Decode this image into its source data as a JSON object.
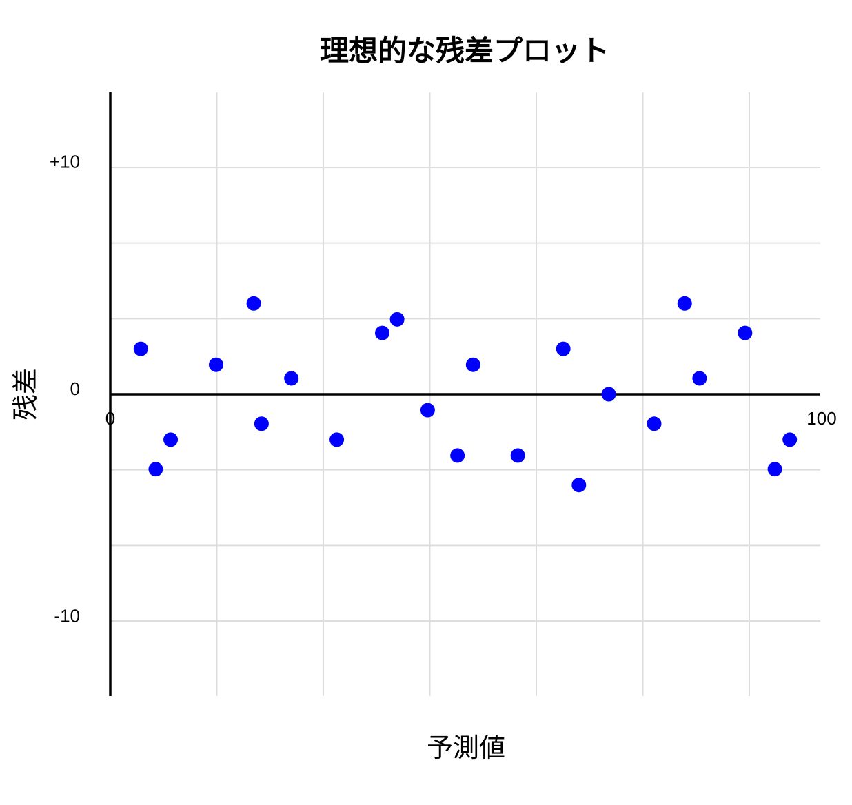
{
  "chart_data": {
    "type": "scatter",
    "title": "理想的な残差プロット",
    "xlabel": "予測値",
    "ylabel": "残差",
    "xlim": [
      0,
      100
    ],
    "ylim": [
      -13.3,
      13.3
    ],
    "x_grid_step": 15,
    "y_grid_step": 3.33,
    "grid": true,
    "point_color": "#0000ff",
    "x_tick_labels": [
      {
        "value": 0,
        "label": "0"
      },
      {
        "value": 100,
        "label": "100"
      }
    ],
    "y_tick_labels": [
      {
        "value": 10,
        "label": "+10"
      },
      {
        "value": 0,
        "label": "0"
      },
      {
        "value": -10,
        "label": "-10"
      }
    ],
    "points": [
      {
        "x": 4.3,
        "y": 2.0
      },
      {
        "x": 6.4,
        "y": -3.3
      },
      {
        "x": 8.5,
        "y": -2.0
      },
      {
        "x": 14.9,
        "y": 1.3
      },
      {
        "x": 20.2,
        "y": 4.0
      },
      {
        "x": 21.3,
        "y": -1.3
      },
      {
        "x": 25.5,
        "y": 0.7
      },
      {
        "x": 31.9,
        "y": -2.0
      },
      {
        "x": 38.3,
        "y": 2.7
      },
      {
        "x": 40.4,
        "y": 3.3
      },
      {
        "x": 44.7,
        "y": -0.7
      },
      {
        "x": 48.9,
        "y": -2.7
      },
      {
        "x": 51.1,
        "y": 1.3
      },
      {
        "x": 57.4,
        "y": -2.7
      },
      {
        "x": 63.8,
        "y": 2.0
      },
      {
        "x": 66.0,
        "y": -4.0
      },
      {
        "x": 70.2,
        "y": 0.0
      },
      {
        "x": 76.6,
        "y": -1.3
      },
      {
        "x": 80.9,
        "y": 4.0
      },
      {
        "x": 83.0,
        "y": 0.7
      },
      {
        "x": 89.4,
        "y": 2.7
      },
      {
        "x": 93.6,
        "y": -3.3
      },
      {
        "x": 95.7,
        "y": -2.0
      }
    ]
  }
}
